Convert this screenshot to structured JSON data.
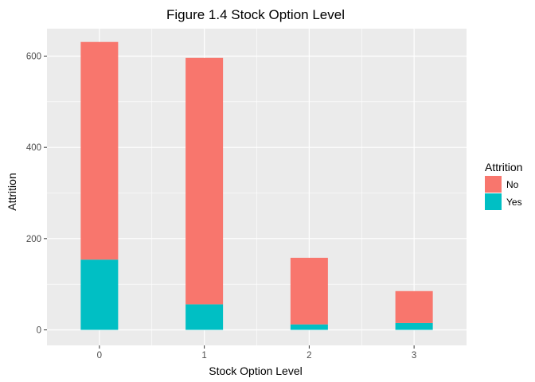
{
  "chart_data": {
    "type": "bar",
    "stacked": true,
    "title": "Figure 1.4 Stock Option Level",
    "xlabel": "Stock Option Level",
    "ylabel": "Attrition",
    "categories": [
      "0",
      "1",
      "2",
      "3"
    ],
    "yticks": [
      0,
      200,
      400,
      600
    ],
    "ylim": [
      0,
      660
    ],
    "grid": true,
    "legend": {
      "title": "Attrition",
      "position": "right"
    },
    "series": [
      {
        "name": "Yes",
        "values": [
          154,
          56,
          12,
          15
        ],
        "color": "#00BFC4"
      },
      {
        "name": "No",
        "values": [
          477,
          540,
          146,
          70
        ],
        "color": "#F8766D"
      }
    ],
    "legend_order": [
      "No",
      "Yes"
    ],
    "panel_color": "#EBEBEB",
    "grid_color": "#FFFFFF"
  }
}
